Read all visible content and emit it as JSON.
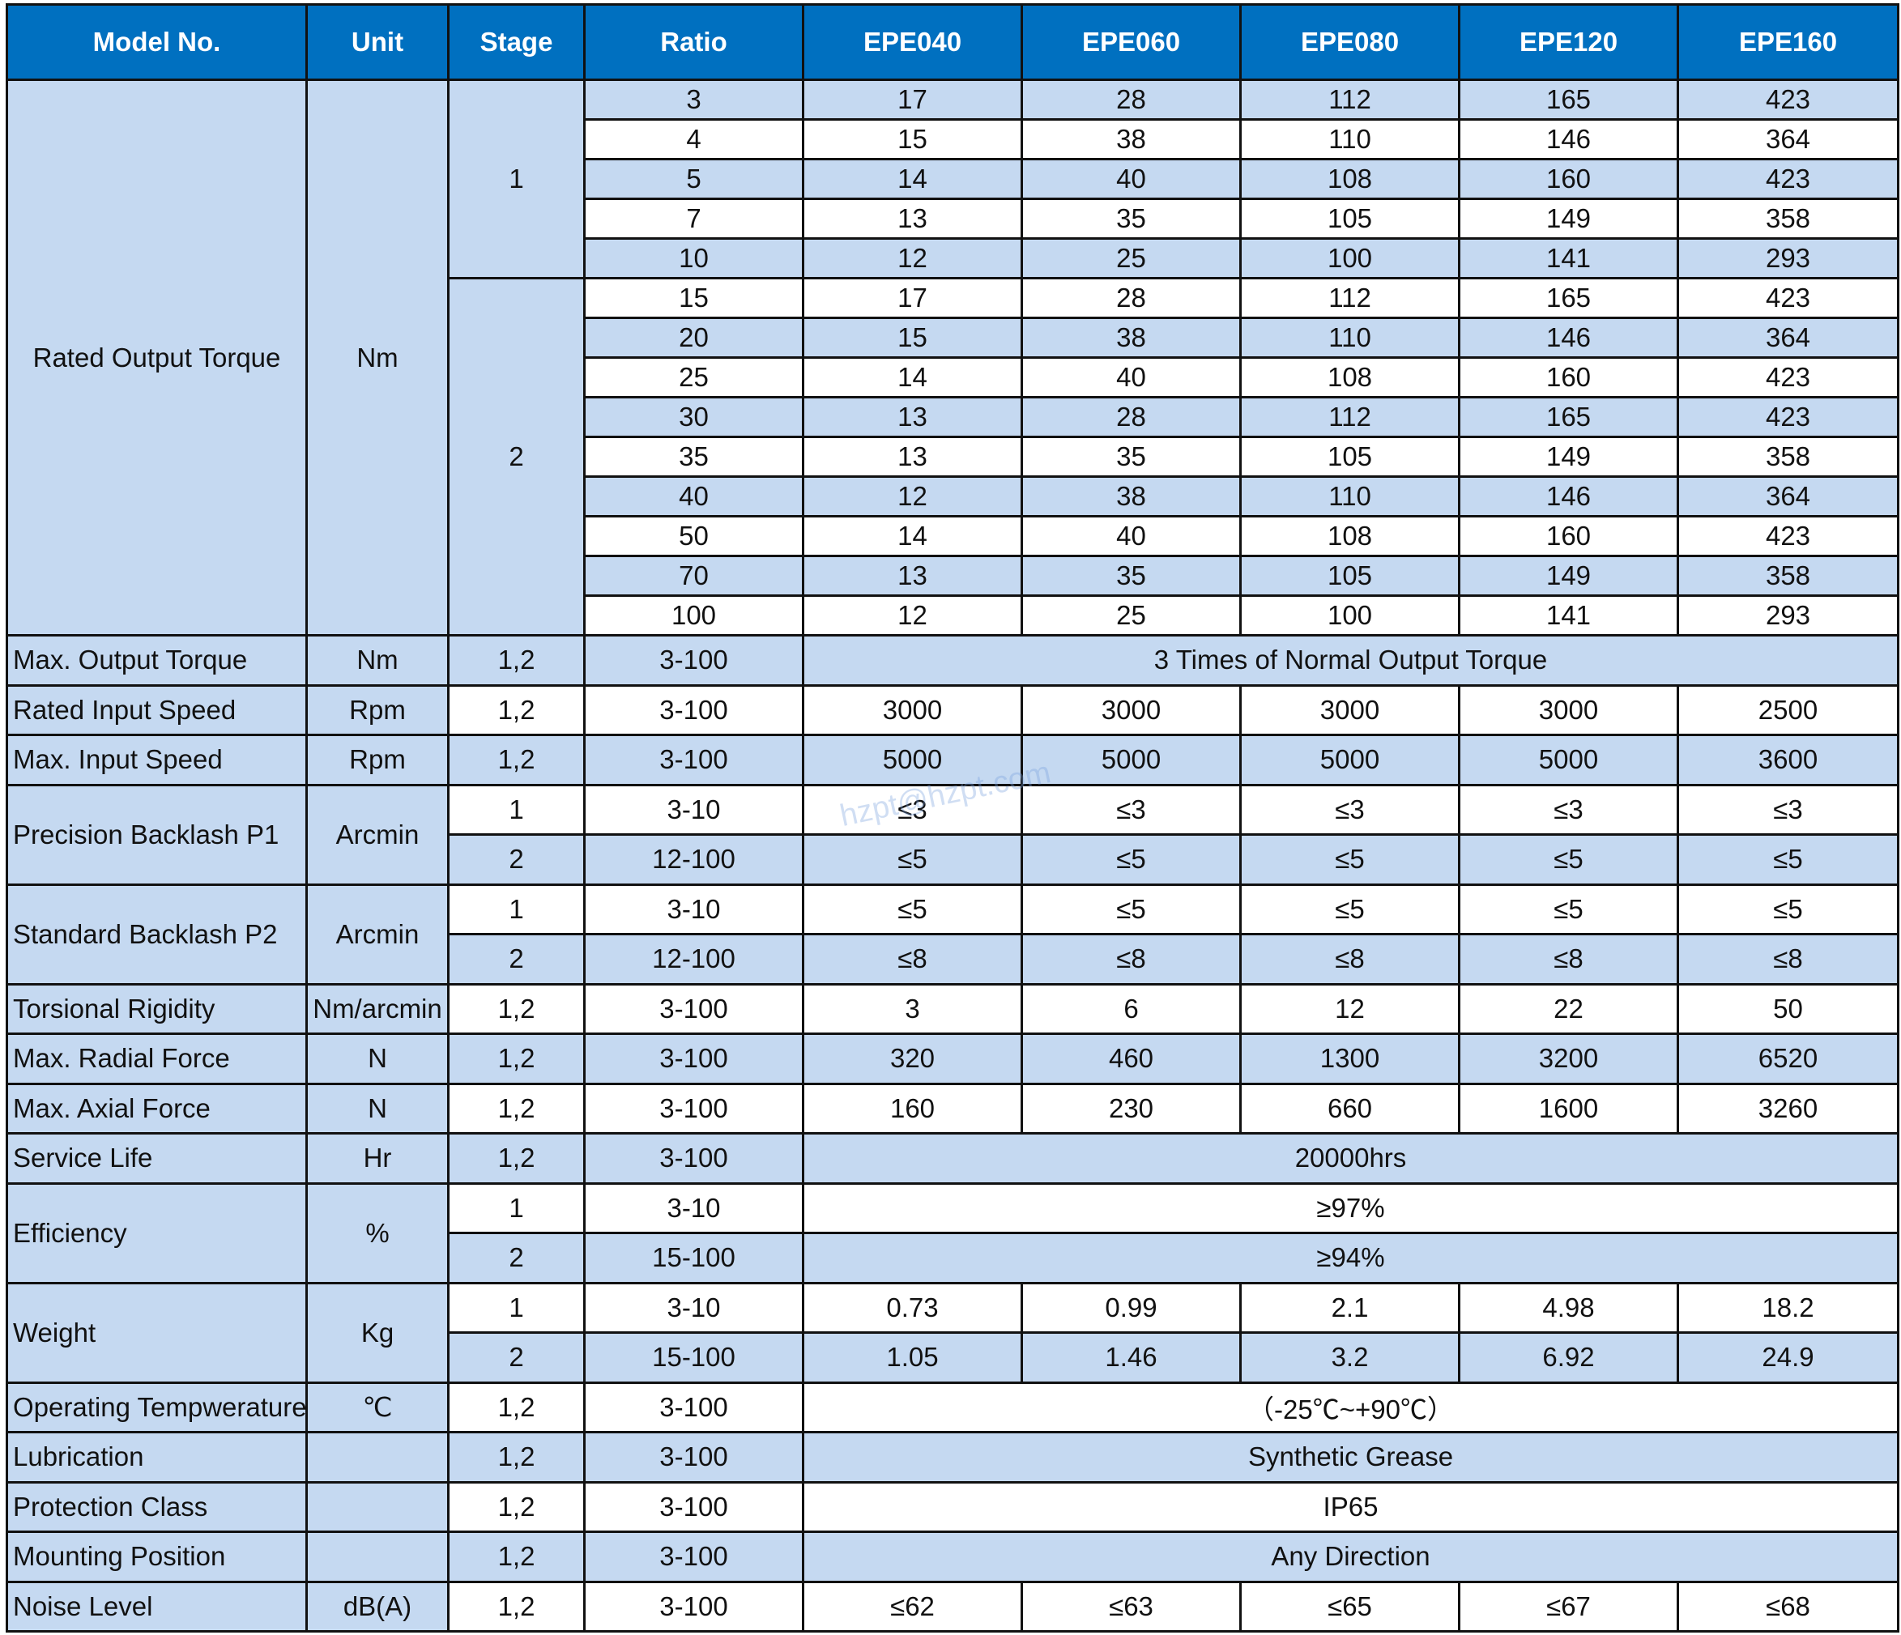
{
  "colors": {
    "header_bg": "#0070C0",
    "stripe": "#C5D9F1",
    "header_text": "#FFFFFF"
  },
  "header": [
    "Model No.",
    "Unit",
    "Stage",
    "Ratio",
    "EPE040",
    "EPE060",
    "EPE080",
    "EPE120",
    "EPE160"
  ],
  "torque": {
    "label": "Rated Output Torque",
    "unit": "Nm",
    "stages": [
      {
        "stage": "1",
        "rows": [
          {
            "ratio": "3",
            "values": [
              "17",
              "28",
              "112",
              "165",
              "423"
            ]
          },
          {
            "ratio": "4",
            "values": [
              "15",
              "38",
              "110",
              "146",
              "364"
            ]
          },
          {
            "ratio": "5",
            "values": [
              "14",
              "40",
              "108",
              "160",
              "423"
            ]
          },
          {
            "ratio": "7",
            "values": [
              "13",
              "35",
              "105",
              "149",
              "358"
            ]
          },
          {
            "ratio": "10",
            "values": [
              "12",
              "25",
              "100",
              "141",
              "293"
            ]
          }
        ]
      },
      {
        "stage": "2",
        "rows": [
          {
            "ratio": "15",
            "values": [
              "17",
              "28",
              "112",
              "165",
              "423"
            ]
          },
          {
            "ratio": "20",
            "values": [
              "15",
              "38",
              "110",
              "146",
              "364"
            ]
          },
          {
            "ratio": "25",
            "values": [
              "14",
              "40",
              "108",
              "160",
              "423"
            ]
          },
          {
            "ratio": "30",
            "values": [
              "13",
              "28",
              "112",
              "165",
              "423"
            ]
          },
          {
            "ratio": "35",
            "values": [
              "13",
              "35",
              "105",
              "149",
              "358"
            ]
          },
          {
            "ratio": "40",
            "values": [
              "12",
              "38",
              "110",
              "146",
              "364"
            ]
          },
          {
            "ratio": "50",
            "values": [
              "14",
              "40",
              "108",
              "160",
              "423"
            ]
          },
          {
            "ratio": "70",
            "values": [
              "13",
              "35",
              "105",
              "149",
              "358"
            ]
          },
          {
            "ratio": "100",
            "values": [
              "12",
              "25",
              "100",
              "141",
              "293"
            ]
          }
        ]
      }
    ]
  },
  "rows": [
    {
      "label": "Max. Output Torque",
      "unit": "Nm",
      "groups": [
        {
          "stage": "1,2",
          "ratio": "3-100",
          "merged": "3 Times of Normal Output Torque"
        }
      ]
    },
    {
      "label": "Rated Input Speed",
      "unit": "Rpm",
      "groups": [
        {
          "stage": "1,2",
          "ratio": "3-100",
          "values": [
            "3000",
            "3000",
            "3000",
            "3000",
            "2500"
          ]
        }
      ]
    },
    {
      "label": "Max. Input Speed",
      "unit": "Rpm",
      "groups": [
        {
          "stage": "1,2",
          "ratio": "3-100",
          "values": [
            "5000",
            "5000",
            "5000",
            "5000",
            "3600"
          ]
        }
      ]
    },
    {
      "label": "Precision Backlash P1",
      "unit": "Arcmin",
      "groups": [
        {
          "stage": "1",
          "ratio": "3-10",
          "values": [
            "≤3",
            "≤3",
            "≤3",
            "≤3",
            "≤3"
          ]
        },
        {
          "stage": "2",
          "ratio": "12-100",
          "values": [
            "≤5",
            "≤5",
            "≤5",
            "≤5",
            "≤5"
          ]
        }
      ]
    },
    {
      "label": "Standard Backlash P2",
      "unit": "Arcmin",
      "groups": [
        {
          "stage": "1",
          "ratio": "3-10",
          "values": [
            "≤5",
            "≤5",
            "≤5",
            "≤5",
            "≤5"
          ]
        },
        {
          "stage": "2",
          "ratio": "12-100",
          "values": [
            "≤8",
            "≤8",
            "≤8",
            "≤8",
            "≤8"
          ]
        }
      ]
    },
    {
      "label": "Torsional Rigidity",
      "unit": "Nm/arcmin",
      "groups": [
        {
          "stage": "1,2",
          "ratio": "3-100",
          "values": [
            "3",
            "6",
            "12",
            "22",
            "50"
          ]
        }
      ]
    },
    {
      "label": "Max. Radial Force",
      "unit": "N",
      "groups": [
        {
          "stage": "1,2",
          "ratio": "3-100",
          "values": [
            "320",
            "460",
            "1300",
            "3200",
            "6520"
          ]
        }
      ]
    },
    {
      "label": "Max. Axial Force",
      "unit": "N",
      "groups": [
        {
          "stage": "1,2",
          "ratio": "3-100",
          "values": [
            "160",
            "230",
            "660",
            "1600",
            "3260"
          ]
        }
      ]
    },
    {
      "label": "Service Life",
      "unit": "Hr",
      "groups": [
        {
          "stage": "1,2",
          "ratio": "3-100",
          "merged": "20000hrs"
        }
      ]
    },
    {
      "label": "Efficiency",
      "unit": "%",
      "groups": [
        {
          "stage": "1",
          "ratio": "3-10",
          "merged": "≥97%"
        },
        {
          "stage": "2",
          "ratio": "15-100",
          "merged": "≥94%"
        }
      ]
    },
    {
      "label": "Weight",
      "unit": "Kg",
      "groups": [
        {
          "stage": "1",
          "ratio": "3-10",
          "values": [
            "0.73",
            "0.99",
            "2.1",
            "4.98",
            "18.2"
          ]
        },
        {
          "stage": "2",
          "ratio": "15-100",
          "values": [
            "1.05",
            "1.46",
            "3.2",
            "6.92",
            "24.9"
          ]
        }
      ]
    },
    {
      "label": "Operating Tempwerature",
      "unit": "℃",
      "groups": [
        {
          "stage": "1,2",
          "ratio": "3-100",
          "merged": "（-25℃~+90℃）"
        }
      ]
    },
    {
      "label": "Lubrication",
      "unit": "",
      "groups": [
        {
          "stage": "1,2",
          "ratio": "3-100",
          "merged": "Synthetic Grease"
        }
      ]
    },
    {
      "label": "Protection Class",
      "unit": "",
      "groups": [
        {
          "stage": "1,2",
          "ratio": "3-100",
          "merged": "IP65"
        }
      ]
    },
    {
      "label": "Mounting Position",
      "unit": "",
      "groups": [
        {
          "stage": "1,2",
          "ratio": "3-100",
          "merged": "Any Direction"
        }
      ]
    },
    {
      "label": "Noise Level",
      "unit": "dB(A)",
      "groups": [
        {
          "stage": "1,2",
          "ratio": "3-100",
          "values": [
            "≤62",
            "≤63",
            "≤65",
            "≤67",
            "≤68"
          ]
        }
      ]
    }
  ],
  "watermark": "hzpt@hzpt.com"
}
